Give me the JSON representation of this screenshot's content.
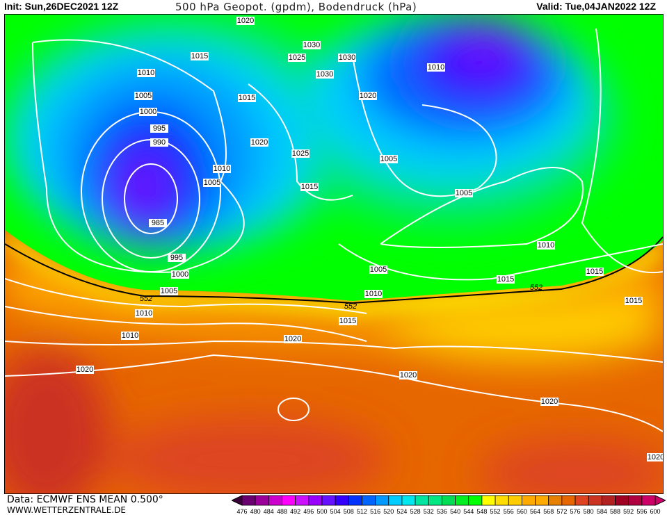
{
  "header": {
    "init": "Init: Sun,26DEC2021  12Z",
    "title": "500 hPa Geopot. (gpdm), Bodendruck (hPa)",
    "valid": "Valid: Tue,04JAN2022  12Z"
  },
  "footer": {
    "data_source": "Data: ECMWF ENS MEAN 0.500°",
    "website": "WWW.WETTERZENTRALE.DE"
  },
  "colorbar": {
    "labels": [
      "476",
      "480",
      "484",
      "488",
      "492",
      "496",
      "500",
      "504",
      "508",
      "512",
      "516",
      "520",
      "524",
      "528",
      "532",
      "536",
      "540",
      "544",
      "548",
      "552",
      "556",
      "560",
      "564",
      "568",
      "572",
      "576",
      "580",
      "584",
      "588",
      "592",
      "596",
      "600"
    ],
    "colors": [
      "#3a0038",
      "#6a0070",
      "#9a0099",
      "#cc00cc",
      "#ff00ff",
      "#cc11ff",
      "#9900ff",
      "#6611ff",
      "#3300ff",
      "#0033ff",
      "#0066ff",
      "#0099ff",
      "#00ccff",
      "#00e8ee",
      "#00e6a0",
      "#00e680",
      "#00dd55",
      "#00ee22",
      "#00ff00",
      "#ffff00",
      "#ffdd00",
      "#ffcc00",
      "#ffaa00",
      "#ffaa00",
      "#e68000",
      "#e66600",
      "#dd4422",
      "#cc3322",
      "#b22222",
      "#a00022",
      "#b00040",
      "#cc0066"
    ]
  },
  "map": {
    "contour_552_label": "552",
    "isobar_labels": [
      "1020",
      "1030",
      "1025",
      "1030",
      "1015",
      "1010",
      "1030",
      "1005",
      "1015",
      "1020",
      "1000",
      "995",
      "990",
      "1020",
      "1025",
      "1010",
      "1005",
      "1005",
      "1015",
      "1005",
      "985",
      "995",
      "1000",
      "1010",
      "1005",
      "1015",
      "1005",
      "1010",
      "1010",
      "1015",
      "1015",
      "1010",
      "1020",
      "1015",
      "1020",
      "1020",
      "1020",
      "1020",
      "1010",
      "552",
      "552",
      "552"
    ]
  }
}
